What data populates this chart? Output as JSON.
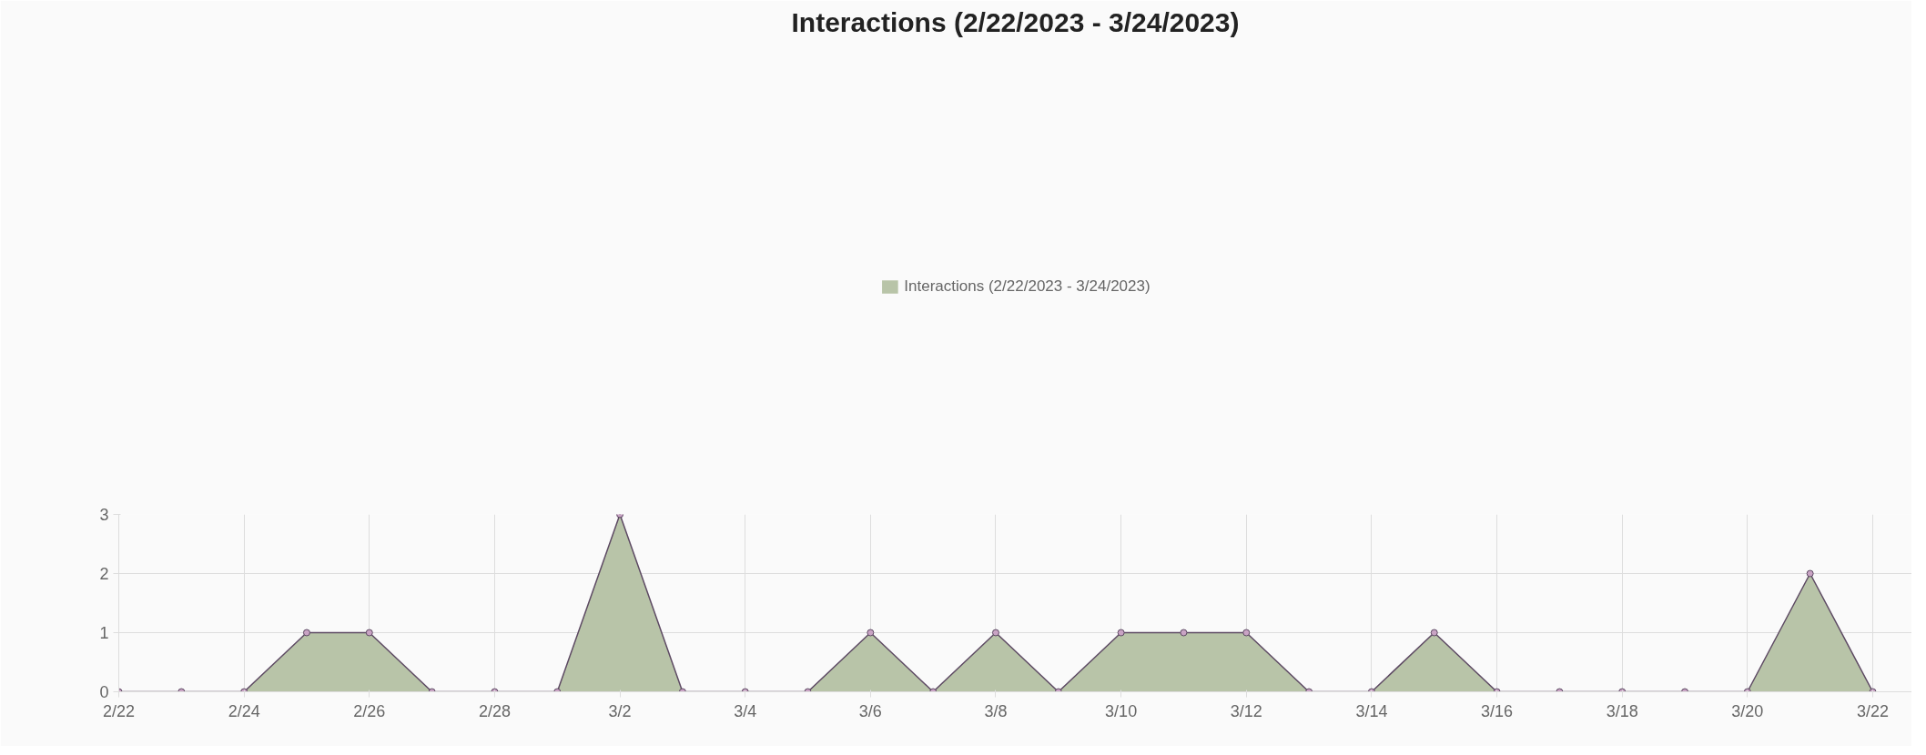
{
  "chart_data": {
    "type": "area",
    "title": "Interactions (2/22/2023 - 3/24/2023)",
    "x": [
      "2023-02-22",
      "2023-02-23",
      "2023-02-24",
      "2023-02-25",
      "2023-02-26",
      "2023-02-27",
      "2023-02-28",
      "2023-03-01",
      "2023-03-02",
      "2023-03-03",
      "2023-03-04",
      "2023-03-05",
      "2023-03-06",
      "2023-03-07",
      "2023-03-08",
      "2023-03-09",
      "2023-03-10",
      "2023-03-11",
      "2023-03-12",
      "2023-03-13",
      "2023-03-14",
      "2023-03-15",
      "2023-03-16",
      "2023-03-17",
      "2023-03-18",
      "2023-03-19",
      "2023-03-20",
      "2023-03-21",
      "2023-03-22"
    ],
    "series": [
      {
        "name": "Interactions (2/22/2023 - 3/24/2023)",
        "color": "#b8c4a8",
        "values": [
          0,
          0,
          0,
          1,
          1,
          0,
          0,
          0,
          3,
          0,
          0,
          0,
          1,
          0,
          1,
          0,
          1,
          1,
          1,
          0,
          0,
          1,
          0,
          0,
          0,
          0,
          0,
          2,
          0
        ]
      }
    ],
    "xlim": [
      "2023-02-22",
      "2023-03-22T15:00"
    ],
    "xticks": [
      {
        "value": "2023-02-22",
        "label": "2/22"
      },
      {
        "value": "2023-02-24",
        "label": "2/24"
      },
      {
        "value": "2023-02-26",
        "label": "2/26"
      },
      {
        "value": "2023-02-28",
        "label": "2/28"
      },
      {
        "value": "2023-03-02",
        "label": "3/2"
      },
      {
        "value": "2023-03-04",
        "label": "3/4"
      },
      {
        "value": "2023-03-06",
        "label": "3/6"
      },
      {
        "value": "2023-03-08",
        "label": "3/8"
      },
      {
        "value": "2023-03-10",
        "label": "3/10"
      },
      {
        "value": "2023-03-12",
        "label": "3/12"
      },
      {
        "value": "2023-03-14",
        "label": "3/14"
      },
      {
        "value": "2023-03-16",
        "label": "3/16"
      },
      {
        "value": "2023-03-18",
        "label": "3/18"
      },
      {
        "value": "2023-03-20",
        "label": "3/20"
      },
      {
        "value": "2023-03-22",
        "label": "3/22"
      }
    ],
    "ylim": [
      0,
      3
    ],
    "yticks": [
      0,
      1,
      2,
      3
    ],
    "grid": true,
    "legend": "top",
    "marker": "circle",
    "line_style": "solid"
  }
}
